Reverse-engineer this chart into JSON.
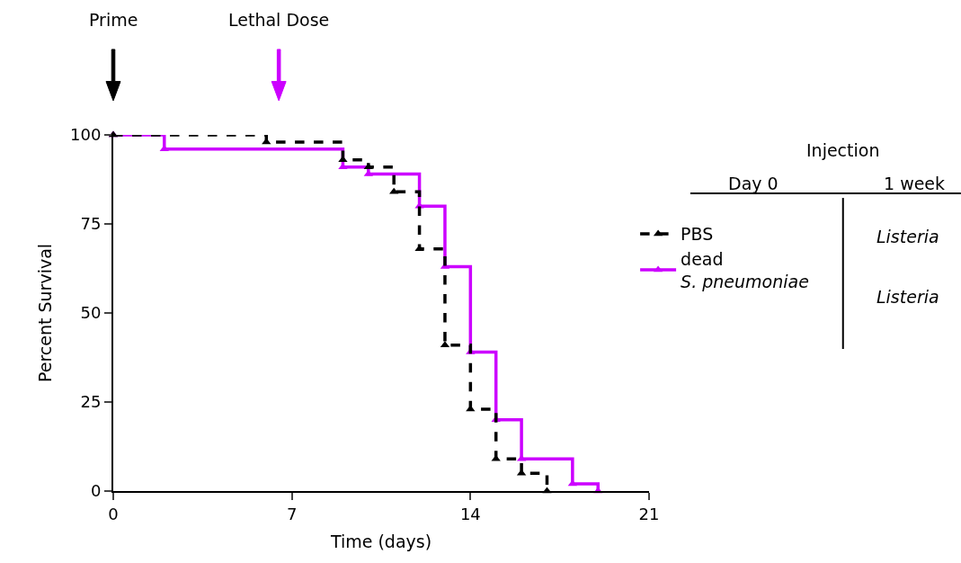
{
  "chart_data": {
    "type": "step",
    "xlabel": "Time (days)",
    "ylabel": "Percent Survival",
    "xlim": [
      0,
      21
    ],
    "xticks": [
      0,
      7,
      14,
      21
    ],
    "ylim": [
      0,
      100
    ],
    "yticks": [
      0,
      25,
      50,
      75,
      100
    ],
    "legend": "right",
    "marker": "triangle",
    "series": [
      {
        "name": "PBS",
        "color": "#000000",
        "line_style": "dashed",
        "x": [
          0,
          6,
          9,
          10,
          11,
          12,
          13,
          14,
          15,
          16,
          17
        ],
        "values": [
          100,
          98,
          93,
          91,
          84,
          68,
          41,
          23,
          9,
          5,
          0
        ]
      },
      {
        "name": "dead S. pneumoniae",
        "color": "#cc00ff",
        "line_style": "solid",
        "x": [
          0,
          2,
          9,
          10,
          12,
          13,
          14,
          15,
          16,
          18,
          19
        ],
        "values": [
          100,
          96,
          91,
          89,
          80,
          63,
          39,
          20,
          9,
          2,
          0
        ]
      }
    ],
    "annotations": [
      "Prime",
      "Lethal Dose",
      "Injection",
      "Day 0",
      "1 week",
      "Listeria",
      "Listeria"
    ]
  }
}
